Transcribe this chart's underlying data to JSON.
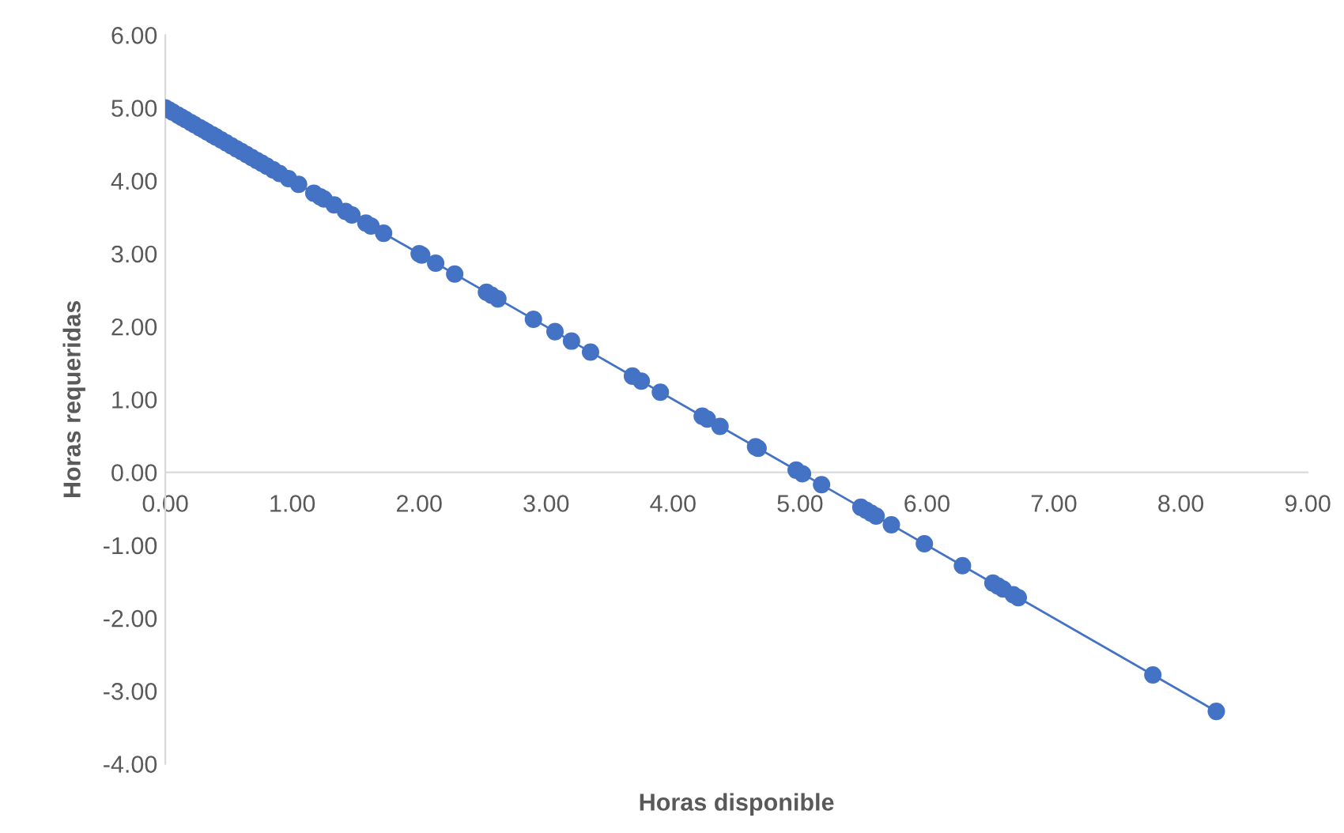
{
  "chart_data": {
    "type": "scatter",
    "xlabel": "Horas disponible",
    "ylabel": "Horas requeridas",
    "xlim": [
      0,
      9
    ],
    "ylim": [
      -4,
      6
    ],
    "xticks": [
      {
        "value": 0,
        "label": "0.00"
      },
      {
        "value": 1,
        "label": "1.00"
      },
      {
        "value": 2,
        "label": "2.00"
      },
      {
        "value": 3,
        "label": "3.00"
      },
      {
        "value": 4,
        "label": "4.00"
      },
      {
        "value": 5,
        "label": "5.00"
      },
      {
        "value": 6,
        "label": "6.00"
      },
      {
        "value": 7,
        "label": "7.00"
      },
      {
        "value": 8,
        "label": "8.00"
      },
      {
        "value": 9,
        "label": "9.00"
      }
    ],
    "yticks": [
      {
        "value": -4,
        "label": "-4.00"
      },
      {
        "value": -3,
        "label": "-3.00"
      },
      {
        "value": -2,
        "label": "-2.00"
      },
      {
        "value": -1,
        "label": "-1.00"
      },
      {
        "value": 0,
        "label": "0.00"
      },
      {
        "value": 1,
        "label": "1.00"
      },
      {
        "value": 2,
        "label": "2.00"
      },
      {
        "value": 3,
        "label": "3.00"
      },
      {
        "value": 4,
        "label": "4.00"
      },
      {
        "value": 5,
        "label": "5.00"
      },
      {
        "value": 6,
        "label": "6.00"
      }
    ],
    "grid": false,
    "legend": false,
    "series": [
      {
        "marker": "circle",
        "color": "#4472c4",
        "x": [
          0,
          0.03,
          0.06,
          0.1,
          0.13,
          0.16,
          0.2,
          0.23,
          0.27,
          0.3,
          0.33,
          0.37,
          0.4,
          0.44,
          0.48,
          0.52,
          0.56,
          0.6,
          0.64,
          0.68,
          0.72,
          0.76,
          0.8,
          0.85,
          0.9,
          0.97,
          1.05,
          1.17,
          1.22,
          1.25,
          1.33,
          1.42,
          1.47,
          1.58,
          1.62,
          1.72,
          2.0,
          2.02,
          2.13,
          2.28,
          2.53,
          2.57,
          2.62,
          2.9,
          3.07,
          3.2,
          3.35,
          3.68,
          3.75,
          3.9,
          4.23,
          4.27,
          4.37,
          4.65,
          4.67,
          4.97,
          5.02,
          5.17,
          5.48,
          5.52,
          5.56,
          5.6,
          5.72,
          5.98,
          6.28,
          6.52,
          6.56,
          6.6,
          6.68,
          6.72,
          7.78,
          8.28
        ],
        "values": [
          5,
          4.97,
          4.94,
          4.9,
          4.87,
          4.84,
          4.8,
          4.77,
          4.73,
          4.7,
          4.67,
          4.63,
          4.6,
          4.56,
          4.52,
          4.48,
          4.44,
          4.4,
          4.36,
          4.32,
          4.28,
          4.24,
          4.2,
          4.15,
          4.1,
          4.03,
          3.95,
          3.83,
          3.78,
          3.75,
          3.67,
          3.58,
          3.53,
          3.42,
          3.38,
          3.28,
          3.0,
          2.98,
          2.87,
          2.72,
          2.47,
          2.43,
          2.38,
          2.1,
          1.93,
          1.8,
          1.65,
          1.32,
          1.25,
          1.1,
          0.77,
          0.73,
          0.63,
          0.35,
          0.33,
          0.03,
          -0.02,
          -0.17,
          -0.48,
          -0.52,
          -0.56,
          -0.6,
          -0.72,
          -0.98,
          -1.28,
          -1.52,
          -1.56,
          -1.6,
          -1.68,
          -1.72,
          -2.78,
          -3.28
        ]
      },
      {
        "type": "line",
        "marker": "none",
        "line_style": "solid",
        "color": "#4472c4",
        "x": [
          0,
          8.28
        ],
        "values": [
          5,
          -3.28
        ]
      }
    ]
  }
}
